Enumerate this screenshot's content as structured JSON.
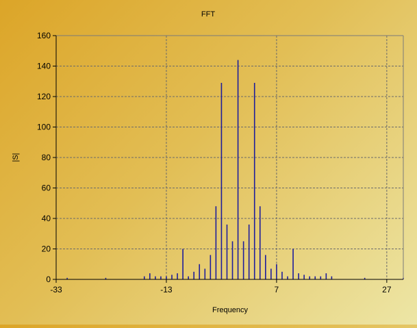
{
  "chart_data": {
    "type": "bar",
    "title": "FFT",
    "xlabel": "Frequency",
    "ylabel": "|S|",
    "xlim": [
      -33,
      30
    ],
    "ylim": [
      0,
      160
    ],
    "x_ticks": [
      "-33",
      "-13",
      "7",
      "27"
    ],
    "x_tick_values": [
      -33,
      -13,
      7,
      27
    ],
    "y_ticks": [
      "0",
      "20",
      "40",
      "60",
      "80",
      "100",
      "120",
      "140",
      "160"
    ],
    "y_tick_values": [
      0,
      20,
      40,
      60,
      80,
      100,
      120,
      140,
      160
    ],
    "grid": true,
    "bar_color": "#1c1c9c",
    "points": [
      {
        "x": -31,
        "y": 1
      },
      {
        "x": -24,
        "y": 1
      },
      {
        "x": -17,
        "y": 2
      },
      {
        "x": -16,
        "y": 4
      },
      {
        "x": -15,
        "y": 2
      },
      {
        "x": -14,
        "y": 2
      },
      {
        "x": -13,
        "y": 2
      },
      {
        "x": -12,
        "y": 3
      },
      {
        "x": -11,
        "y": 4
      },
      {
        "x": -10,
        "y": 20
      },
      {
        "x": -9,
        "y": 2
      },
      {
        "x": -8,
        "y": 5
      },
      {
        "x": -7,
        "y": 10
      },
      {
        "x": -6,
        "y": 7
      },
      {
        "x": -5,
        "y": 16
      },
      {
        "x": -4,
        "y": 48
      },
      {
        "x": -3,
        "y": 129
      },
      {
        "x": -2,
        "y": 36
      },
      {
        "x": -1,
        "y": 25
      },
      {
        "x": 0,
        "y": 144
      },
      {
        "x": 1,
        "y": 25
      },
      {
        "x": 2,
        "y": 36
      },
      {
        "x": 3,
        "y": 129
      },
      {
        "x": 4,
        "y": 48
      },
      {
        "x": 5,
        "y": 16
      },
      {
        "x": 6,
        "y": 7
      },
      {
        "x": 7,
        "y": 10
      },
      {
        "x": 8,
        "y": 5
      },
      {
        "x": 9,
        "y": 2
      },
      {
        "x": 10,
        "y": 20
      },
      {
        "x": 11,
        "y": 4
      },
      {
        "x": 12,
        "y": 3
      },
      {
        "x": 13,
        "y": 2
      },
      {
        "x": 14,
        "y": 2
      },
      {
        "x": 15,
        "y": 2
      },
      {
        "x": 16,
        "y": 4
      },
      {
        "x": 17,
        "y": 2
      },
      {
        "x": 23,
        "y": 1
      },
      {
        "x": 30,
        "y": 1
      }
    ]
  }
}
